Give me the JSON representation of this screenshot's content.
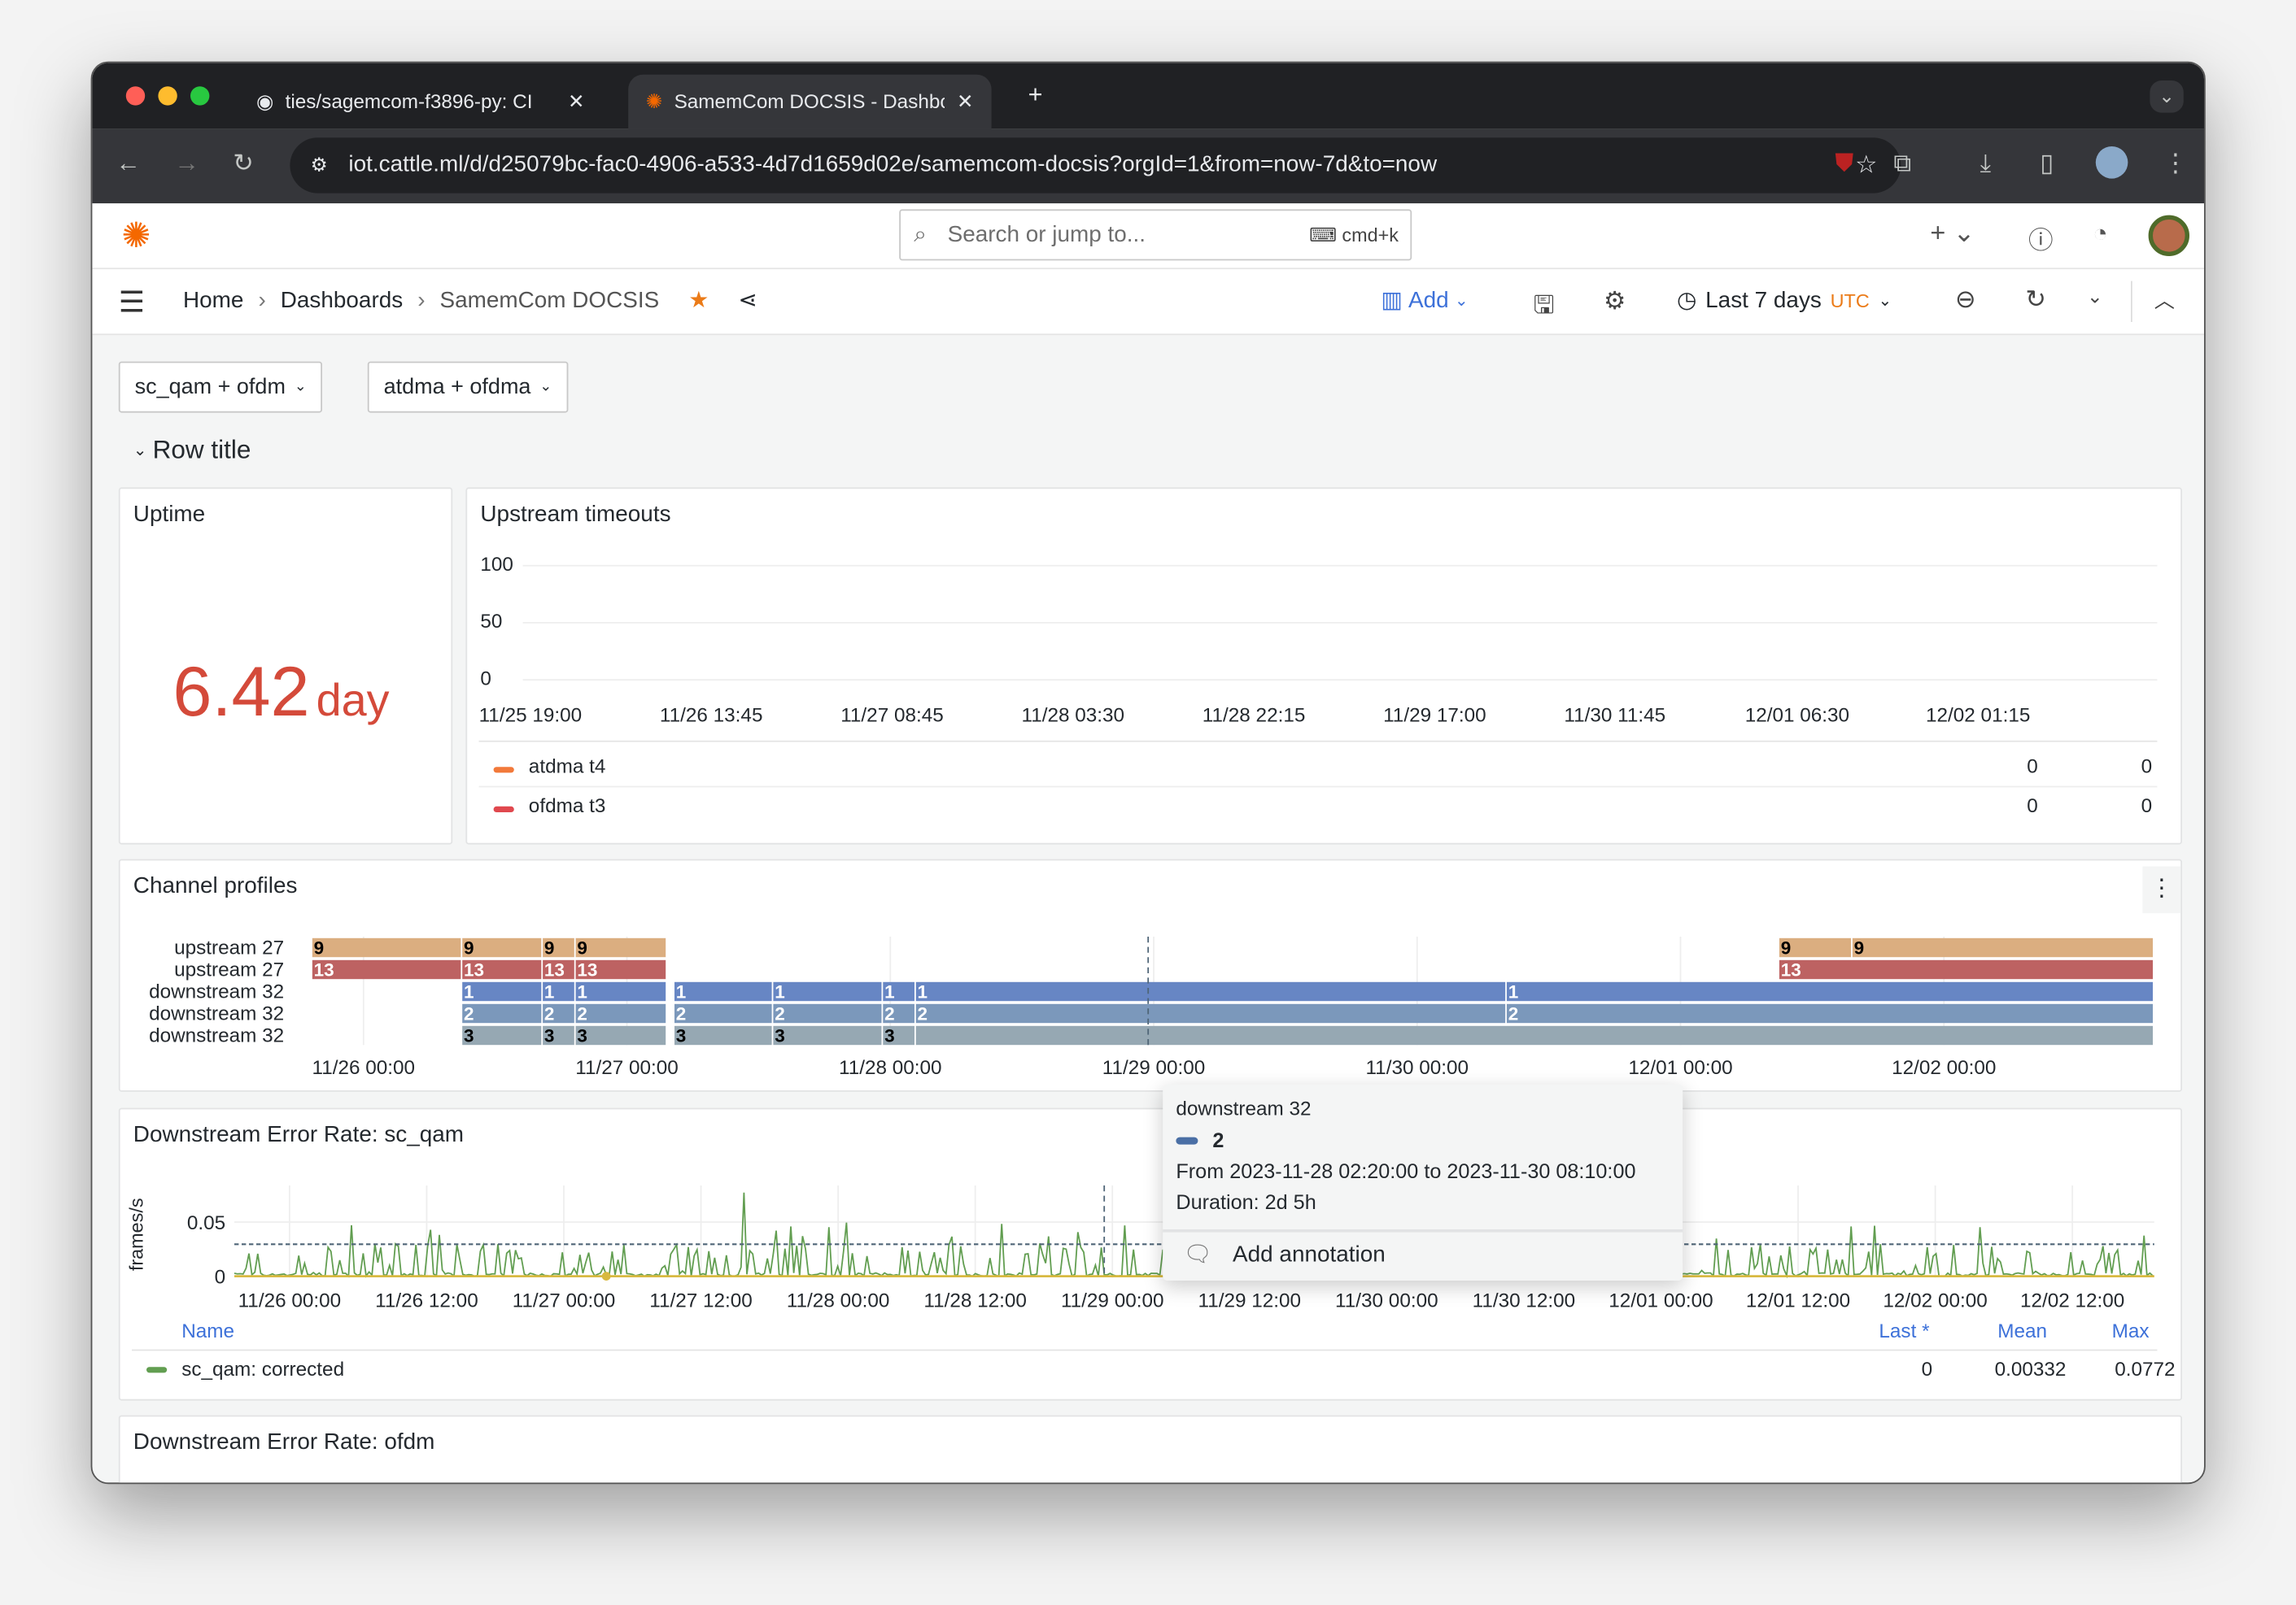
{
  "browser": {
    "tabs": [
      {
        "label": "ties/sagemcom-f3896-py: CI",
        "icon": "github-icon"
      },
      {
        "label": "SamemCom DOCSIS - Dashboard",
        "icon": "grafana-icon"
      }
    ],
    "url": "iot.cattle.ml/d/d25079bc-fac0-4906-a533-4d7d1659d02e/samemcom-docsis?orgId=1&from=now-7d&to=now"
  },
  "header": {
    "search_placeholder": "Search or jump to...",
    "shortcut": "cmd+k"
  },
  "nav": {
    "breadcrumbs": [
      "Home",
      "Dashboards",
      "SamemCom DOCSIS"
    ],
    "add_label": "Add",
    "time_range": "Last 7 days",
    "timezone": "UTC"
  },
  "variables": [
    "sc_qam + ofdm",
    "atdma + ofdma"
  ],
  "row_title": "Row title",
  "uptime": {
    "title": "Uptime",
    "value": "6.42",
    "unit": "day",
    "color": "#d44a3a"
  },
  "upstream_timeouts": {
    "title": "Upstream timeouts",
    "y_ticks": [
      "100",
      "50",
      "0"
    ],
    "x_ticks": [
      "11/25 19:00",
      "11/26 13:45",
      "11/27 08:45",
      "11/28 03:30",
      "11/28 22:15",
      "11/29 17:00",
      "11/30 11:45",
      "12/01 06:30",
      "12/02 01:15"
    ],
    "legend": [
      {
        "name": "atdma t4",
        "color": "#f2793a",
        "v1": "0",
        "v2": "0"
      },
      {
        "name": "ofdma t3",
        "color": "#e0484e",
        "v1": "0",
        "v2": "0"
      }
    ]
  },
  "channel_profiles": {
    "title": "Channel profiles",
    "range": [
      "2023-11-25 19:10",
      "2023-12-02 19:10"
    ],
    "x_ticks": [
      "11/26 00:00",
      "11/27 00:00",
      "11/28 00:00",
      "11/29 00:00",
      "11/30 00:00",
      "12/01 00:00",
      "12/02 00:00"
    ],
    "rows": [
      {
        "label": "upstream 27",
        "color": "#dbae80",
        "text_color": "#000",
        "segments": [
          [
            "2023-11-25 19:20",
            "2023-11-26 09:00",
            "9"
          ],
          [
            "2023-11-26 09:00",
            "2023-11-26 16:20",
            "9"
          ],
          [
            "2023-11-26 16:20",
            "2023-11-26 19:20",
            "9"
          ],
          [
            "2023-11-26 19:20",
            "2023-11-27 03:40",
            "9"
          ],
          [
            "2023-12-01 09:00",
            "2023-12-01 15:40",
            "9"
          ],
          [
            "2023-12-01 15:40",
            "2023-12-02 19:10",
            "9"
          ]
        ]
      },
      {
        "label": "upstream 27",
        "color": "#bd6262",
        "text_color": "#fff",
        "segments": [
          [
            "2023-11-25 19:20",
            "2023-11-26 09:00",
            "13"
          ],
          [
            "2023-11-26 09:00",
            "2023-11-26 16:20",
            "13"
          ],
          [
            "2023-11-26 16:20",
            "2023-11-26 19:20",
            "13"
          ],
          [
            "2023-11-26 19:20",
            "2023-11-27 03:40",
            "13"
          ],
          [
            "2023-12-01 09:00",
            "2023-12-02 19:10",
            "13"
          ]
        ]
      },
      {
        "label": "downstream 32",
        "color": "#6786c4",
        "text_color": "#fff",
        "segments": [
          [
            "2023-11-26 09:00",
            "2023-11-26 16:20",
            "1"
          ],
          [
            "2023-11-26 16:20",
            "2023-11-26 19:20",
            "1"
          ],
          [
            "2023-11-26 19:20",
            "2023-11-27 03:40",
            "1"
          ],
          [
            "2023-11-27 04:20",
            "2023-11-27 13:20",
            "1"
          ],
          [
            "2023-11-27 13:20",
            "2023-11-27 23:20",
            "1"
          ],
          [
            "2023-11-27 23:20",
            "2023-11-28 02:20",
            "1"
          ],
          [
            "2023-11-28 02:20",
            "2023-11-30 08:10",
            "1"
          ],
          [
            "2023-11-30 08:10",
            "2023-12-02 19:10",
            "1"
          ]
        ]
      },
      {
        "label": "downstream 32",
        "color": "#7b98bb",
        "text_color": "#fff",
        "segments": [
          [
            "2023-11-26 09:00",
            "2023-11-26 16:20",
            "2"
          ],
          [
            "2023-11-26 16:20",
            "2023-11-26 19:20",
            "2"
          ],
          [
            "2023-11-26 19:20",
            "2023-11-27 03:40",
            "2"
          ],
          [
            "2023-11-27 04:20",
            "2023-11-27 13:20",
            "2"
          ],
          [
            "2023-11-27 13:20",
            "2023-11-27 23:20",
            "2"
          ],
          [
            "2023-11-27 23:20",
            "2023-11-28 02:20",
            "2"
          ],
          [
            "2023-11-28 02:20",
            "2023-11-30 08:10",
            "2"
          ],
          [
            "2023-11-30 08:10",
            "2023-12-02 19:10",
            "2"
          ]
        ]
      },
      {
        "label": "downstream 32",
        "color": "#96a8b3",
        "text_color": "#000",
        "segments": [
          [
            "2023-11-26 09:00",
            "2023-11-26 16:20",
            "3"
          ],
          [
            "2023-11-26 16:20",
            "2023-11-26 19:20",
            "3"
          ],
          [
            "2023-11-26 19:20",
            "2023-11-27 03:40",
            "3"
          ],
          [
            "2023-11-27 04:20",
            "2023-11-27 13:20",
            "3"
          ],
          [
            "2023-11-27 13:20",
            "2023-11-27 23:20",
            "3"
          ],
          [
            "2023-11-27 23:20",
            "2023-11-28 02:20",
            "3"
          ],
          [
            "2023-11-28 02:20",
            "2023-12-02 19:10",
            ""
          ]
        ]
      }
    ]
  },
  "tooltip": {
    "series": "downstream 32",
    "value": "2",
    "color": "#4a6fa5",
    "range": "From 2023-11-28 02:20:00 to 2023-11-30 08:10:00",
    "duration": "Duration: 2d 5h",
    "action": "Add annotation"
  },
  "sc_qam": {
    "title": "Downstream Error Rate: sc_qam",
    "y_label": "frames/s",
    "y_ticks": [
      "0.05",
      "0"
    ],
    "x_ticks": [
      "11/26 00:00",
      "11/26 12:00",
      "11/27 00:00",
      "11/27 12:00",
      "11/28 00:00",
      "11/28 12:00",
      "11/29 00:00",
      "11/29 12:00",
      "11/30 00:00",
      "11/30 12:00",
      "12/01 00:00",
      "12/01 12:00",
      "12/02 00:00",
      "12/02 12:00"
    ],
    "legend_headers": {
      "name": "Name",
      "last": "Last *",
      "mean": "Mean",
      "max": "Max"
    },
    "series": [
      {
        "name": "sc_qam: corrected",
        "color": "#629e51",
        "last": "0",
        "mean": "0.00332",
        "max": "0.0772"
      }
    ],
    "threshold_color": "#4f6577"
  },
  "ofdm": {
    "title": "Downstream Error Rate: ofdm"
  }
}
